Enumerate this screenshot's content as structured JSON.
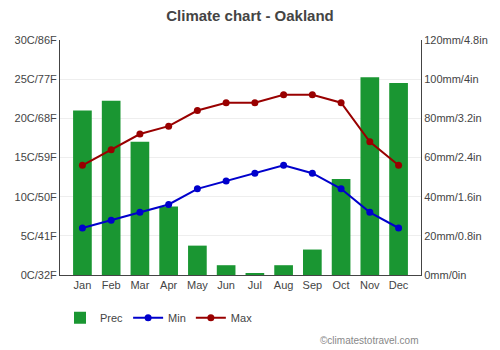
{
  "chart_data": {
    "type": "line",
    "title": "Climate chart - Oakland",
    "categories": [
      "Jan",
      "Feb",
      "Mar",
      "Apr",
      "May",
      "Jun",
      "Jul",
      "Aug",
      "Sep",
      "Oct",
      "Nov",
      "Dec"
    ],
    "series": [
      {
        "name": "Prec",
        "type": "bar",
        "axis": "y2",
        "color": "#1a9632",
        "values": [
          84,
          89,
          68,
          35,
          15,
          5,
          1,
          5,
          13,
          49,
          101,
          98
        ]
      },
      {
        "name": "Min",
        "type": "line",
        "marker": "o",
        "color": "#0000cc",
        "values": [
          6,
          7,
          8,
          9,
          11,
          12,
          13,
          14,
          13,
          11,
          8,
          6
        ]
      },
      {
        "name": "Max",
        "type": "line",
        "marker": "o",
        "color": "#990000",
        "values": [
          14,
          16,
          18,
          19,
          21,
          22,
          22,
          23,
          23,
          22,
          17,
          14
        ]
      }
    ],
    "ylim": [
      0,
      30
    ],
    "yticks": [
      {
        "value": 0,
        "label": "0C/32F"
      },
      {
        "value": 5,
        "label": "5C/41F"
      },
      {
        "value": 10,
        "label": "10C/50F"
      },
      {
        "value": 15,
        "label": "15C/59F"
      },
      {
        "value": 20,
        "label": "20C/68F"
      },
      {
        "value": 25,
        "label": "25C/77F"
      },
      {
        "value": 30,
        "label": "30C/86F"
      }
    ],
    "y2lim": [
      0,
      120
    ],
    "y2ticks": [
      {
        "value": 0,
        "label": "0mm/0in"
      },
      {
        "value": 20,
        "label": "20mm/0.8in"
      },
      {
        "value": 40,
        "label": "40mm/1.6in"
      },
      {
        "value": 60,
        "label": "60mm/2.4in"
      },
      {
        "value": 80,
        "label": "80mm/3.2in"
      },
      {
        "value": 100,
        "label": "100mm/4in"
      },
      {
        "value": 120,
        "label": "120mm/4.8in"
      }
    ],
    "grid": true,
    "legend": "bottom",
    "annotations": [
      "©climatestotravel.com"
    ]
  }
}
